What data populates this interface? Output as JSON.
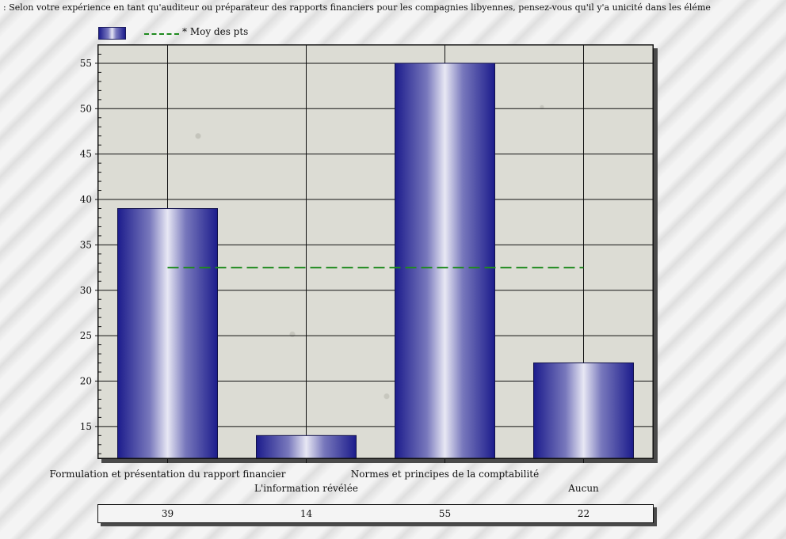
{
  "title": ": Selon votre expérience en tant qu'auditeur ou préparateur des rapports financiers pour les compagnies libyennes, pensez-vous qu'il y'a unicité dans les éléme",
  "legend": {
    "series_label": "",
    "mean_label": "* Moy des pts"
  },
  "colors": {
    "bar_dark": "#1c1c8c",
    "bar_light": "#e6e6f4",
    "mean_line": "#1e8a1e"
  },
  "chart_data": {
    "type": "bar",
    "title": ": Selon votre expérience en tant qu'auditeur ou préparateur des rapports financiers pour les compagnies libyennes, pensez-vous qu'il y'a unicité dans les éléme",
    "categories": [
      "Formulation et présentation du rapport financier",
      "L'information révélée",
      "Normes et principes de la comptabilité",
      "Aucun"
    ],
    "values": [
      39,
      14,
      55,
      22
    ],
    "mean_line": {
      "label": "* Moy des pts",
      "value": 32.5
    },
    "yticks": [
      15,
      20,
      25,
      30,
      35,
      40,
      45,
      50,
      55
    ],
    "ylim": [
      11.5,
      57
    ],
    "xlabel": "",
    "ylabel": "",
    "grid": true,
    "legend_position": "top-left",
    "value_table": [
      "39",
      "14",
      "55",
      "22"
    ]
  }
}
